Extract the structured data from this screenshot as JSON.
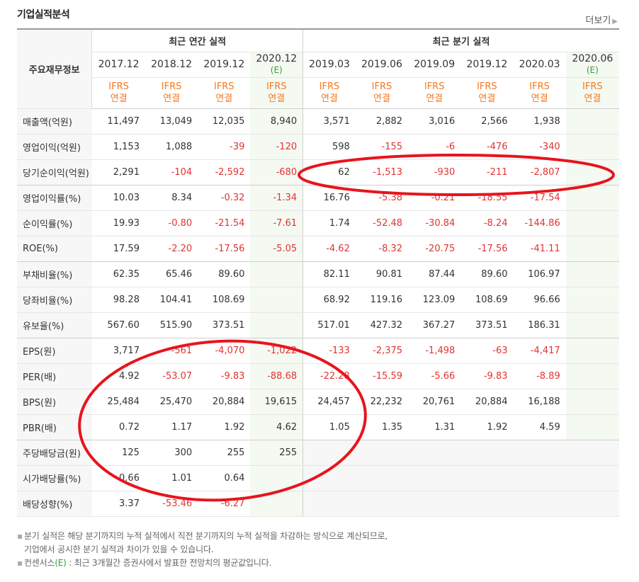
{
  "title": "기업실적분석",
  "more_label": "더보기",
  "header": {
    "label_col": "주요재무정보",
    "annual_group": "최근 연간 실적",
    "quarter_group": "최근 분기 실적",
    "columns": [
      {
        "period": "2017.12",
        "est": "",
        "std1": "IFRS",
        "std2": "연결"
      },
      {
        "period": "2018.12",
        "est": "",
        "std1": "IFRS",
        "std2": "연결"
      },
      {
        "period": "2019.12",
        "est": "",
        "std1": "IFRS",
        "std2": "연결"
      },
      {
        "period": "2020.12",
        "est": "(E)",
        "std1": "IFRS",
        "std2": "연결"
      },
      {
        "period": "2019.03",
        "est": "",
        "std1": "IFRS",
        "std2": "연결"
      },
      {
        "period": "2019.06",
        "est": "",
        "std1": "IFRS",
        "std2": "연결"
      },
      {
        "period": "2019.09",
        "est": "",
        "std1": "IFRS",
        "std2": "연결"
      },
      {
        "period": "2019.12",
        "est": "",
        "std1": "IFRS",
        "std2": "연결"
      },
      {
        "period": "2020.03",
        "est": "",
        "std1": "IFRS",
        "std2": "연결"
      },
      {
        "period": "2020.06",
        "est": "(E)",
        "std1": "IFRS",
        "std2": "연결"
      }
    ]
  },
  "rows": [
    {
      "label": "매출액(억원)",
      "values": [
        "11,497",
        "13,049",
        "12,035",
        "8,940",
        "3,571",
        "2,882",
        "3,016",
        "2,566",
        "1,938",
        ""
      ]
    },
    {
      "label": "영업이익(억원)",
      "values": [
        "1,153",
        "1,088",
        "-39",
        "-120",
        "598",
        "-155",
        "-6",
        "-476",
        "-340",
        ""
      ]
    },
    {
      "label": "당기순이익(억원)",
      "values": [
        "2,291",
        "-104",
        "-2,592",
        "-680",
        "62",
        "-1,513",
        "-930",
        "-211",
        "-2,807",
        ""
      ]
    },
    {
      "label": "영업이익률(%)",
      "values": [
        "10.03",
        "8.34",
        "-0.32",
        "-1.34",
        "16.76",
        "-5.38",
        "-0.21",
        "-18.55",
        "-17.54",
        ""
      ]
    },
    {
      "label": "순이익률(%)",
      "values": [
        "19.93",
        "-0.80",
        "-21.54",
        "-7.61",
        "1.74",
        "-52.48",
        "-30.84",
        "-8.24",
        "-144.86",
        ""
      ]
    },
    {
      "label": "ROE(%)",
      "values": [
        "17.59",
        "-2.20",
        "-17.56",
        "-5.05",
        "-4.62",
        "-8.32",
        "-20.75",
        "-17.56",
        "-41.11",
        ""
      ]
    },
    {
      "label": "부채비율(%)",
      "values": [
        "62.35",
        "65.46",
        "89.60",
        "",
        "82.11",
        "90.81",
        "87.44",
        "89.60",
        "106.97",
        ""
      ]
    },
    {
      "label": "당좌비율(%)",
      "values": [
        "98.28",
        "104.41",
        "108.69",
        "",
        "68.92",
        "119.16",
        "123.09",
        "108.69",
        "96.66",
        ""
      ]
    },
    {
      "label": "유보율(%)",
      "values": [
        "567.60",
        "515.90",
        "373.51",
        "",
        "517.01",
        "427.32",
        "367.27",
        "373.51",
        "186.31",
        ""
      ]
    },
    {
      "label": "EPS(원)",
      "values": [
        "3,717",
        "-561",
        "-4,070",
        "-1,022",
        "-133",
        "-2,375",
        "-1,498",
        "-63",
        "-4,417",
        ""
      ]
    },
    {
      "label": "PER(배)",
      "values": [
        "4.92",
        "-53.07",
        "-9.83",
        "-88.68",
        "-22.28",
        "-15.59",
        "-5.66",
        "-9.83",
        "-8.89",
        ""
      ]
    },
    {
      "label": "BPS(원)",
      "values": [
        "25,484",
        "25,470",
        "20,884",
        "19,615",
        "24,457",
        "22,232",
        "20,761",
        "20,884",
        "16,188",
        ""
      ]
    },
    {
      "label": "PBR(배)",
      "values": [
        "0.72",
        "1.17",
        "1.92",
        "4.62",
        "1.05",
        "1.35",
        "1.31",
        "1.92",
        "4.59",
        ""
      ]
    },
    {
      "label": "주당배당금(원)",
      "values": [
        "125",
        "300",
        "255",
        "255",
        "",
        "",
        "",
        "",
        "",
        ""
      ]
    },
    {
      "label": "시가배당률(%)",
      "values": [
        "0.66",
        "1.01",
        "0.64",
        "",
        "",
        "",
        "",
        "",
        "",
        ""
      ]
    },
    {
      "label": "배당성향(%)",
      "values": [
        "3.37",
        "-53.46",
        "-6.27",
        "",
        "",
        "",
        "",
        "",
        "",
        ""
      ]
    }
  ],
  "notes": {
    "note1_line1": "분기 실적은 해당 분기까지의 누적 실적에서 직전 분기까지의 누적 실적을 차감하는 방식으로 계산되므로,",
    "note1_line2": "기업에서 공시한 분기 실적과 차이가 있을 수 있습니다.",
    "note2_pre": "컨센서스",
    "note2_e": "(E)",
    "note2_post": " : 최근 3개월간 증권사에서 발표한 전망치의 평균값입니다."
  },
  "colors": {
    "negative": "#e23333",
    "standard": "#f47920",
    "estimate": "#3a9b3a",
    "annotation": "#e8141c"
  }
}
